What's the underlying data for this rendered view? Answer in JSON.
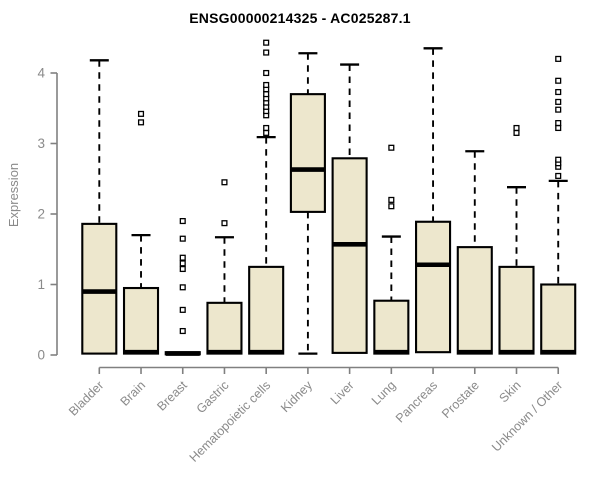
{
  "chart_data": {
    "type": "boxplot",
    "title": "ENSG00000214325 - AC025287.1",
    "xlabel": "",
    "ylabel": "Expression",
    "ylim": [
      0,
      4.5
    ],
    "yticks": [
      0,
      1,
      2,
      3,
      4
    ],
    "grid": false,
    "legend": false,
    "categories": [
      "Bladder",
      "Brain",
      "Breast",
      "Gastric",
      "Hematopoietic cells",
      "Kidney",
      "Liver",
      "Lung",
      "Pancreas",
      "Prostate",
      "Skin",
      "Unknown / Other"
    ],
    "series": [
      {
        "label": "Bladder",
        "low": 0.02,
        "q1": 0.02,
        "median": 0.9,
        "q3": 1.86,
        "high": 4.18,
        "outliers": []
      },
      {
        "label": "Brain",
        "low": 0.02,
        "q1": 0.02,
        "median": 0.04,
        "q3": 0.95,
        "high": 1.7,
        "outliers": [
          3.3,
          3.42
        ]
      },
      {
        "label": "Breast",
        "low": 0.01,
        "q1": 0.01,
        "median": 0.02,
        "q3": 0.04,
        "high": 0.04,
        "outliers": [
          0.34,
          0.64,
          0.96,
          1.22,
          1.3,
          1.38,
          1.65,
          1.9
        ]
      },
      {
        "label": "Gastric",
        "low": 0.02,
        "q1": 0.02,
        "median": 0.04,
        "q3": 0.74,
        "high": 1.67,
        "outliers": [
          1.87,
          2.45
        ]
      },
      {
        "label": "Hematopoietic cells",
        "low": 0.02,
        "q1": 0.02,
        "median": 0.04,
        "q3": 1.25,
        "high": 3.09,
        "outliers": [
          3.15,
          3.22,
          3.4,
          3.46,
          3.52,
          3.58,
          3.64,
          3.7,
          3.77,
          3.83,
          4.0,
          4.29,
          4.43
        ]
      },
      {
        "label": "Kidney",
        "low": 0.02,
        "q1": 2.03,
        "median": 2.63,
        "q3": 3.7,
        "high": 4.28,
        "outliers": []
      },
      {
        "label": "Liver",
        "low": 0.02,
        "q1": 0.03,
        "median": 1.57,
        "q3": 2.79,
        "high": 4.12,
        "outliers": []
      },
      {
        "label": "Lung",
        "low": 0.02,
        "q1": 0.02,
        "median": 0.04,
        "q3": 0.77,
        "high": 1.68,
        "outliers": [
          2.11,
          2.2,
          2.94
        ]
      },
      {
        "label": "Pancreas",
        "low": 0.03,
        "q1": 0.04,
        "median": 1.28,
        "q3": 1.89,
        "high": 4.35,
        "outliers": []
      },
      {
        "label": "Prostate",
        "low": 0.02,
        "q1": 0.02,
        "median": 0.04,
        "q3": 1.53,
        "high": 2.89,
        "outliers": []
      },
      {
        "label": "Skin",
        "low": 0.02,
        "q1": 0.02,
        "median": 0.04,
        "q3": 1.25,
        "high": 2.38,
        "outliers": [
          3.15,
          3.22
        ]
      },
      {
        "label": "Unknown / Other",
        "low": 0.02,
        "q1": 0.02,
        "median": 0.04,
        "q3": 1.0,
        "high": 2.47,
        "outliers": [
          2.54,
          2.67,
          2.72,
          2.77,
          3.22,
          3.29,
          3.48,
          3.59,
          3.73,
          3.89,
          4.2
        ]
      }
    ],
    "colors": {
      "box_fill": "#EDE7CD",
      "box_stroke": "#000000",
      "axis": "#808080",
      "tick_label": "#8A8A8A",
      "title": "#000000"
    }
  }
}
